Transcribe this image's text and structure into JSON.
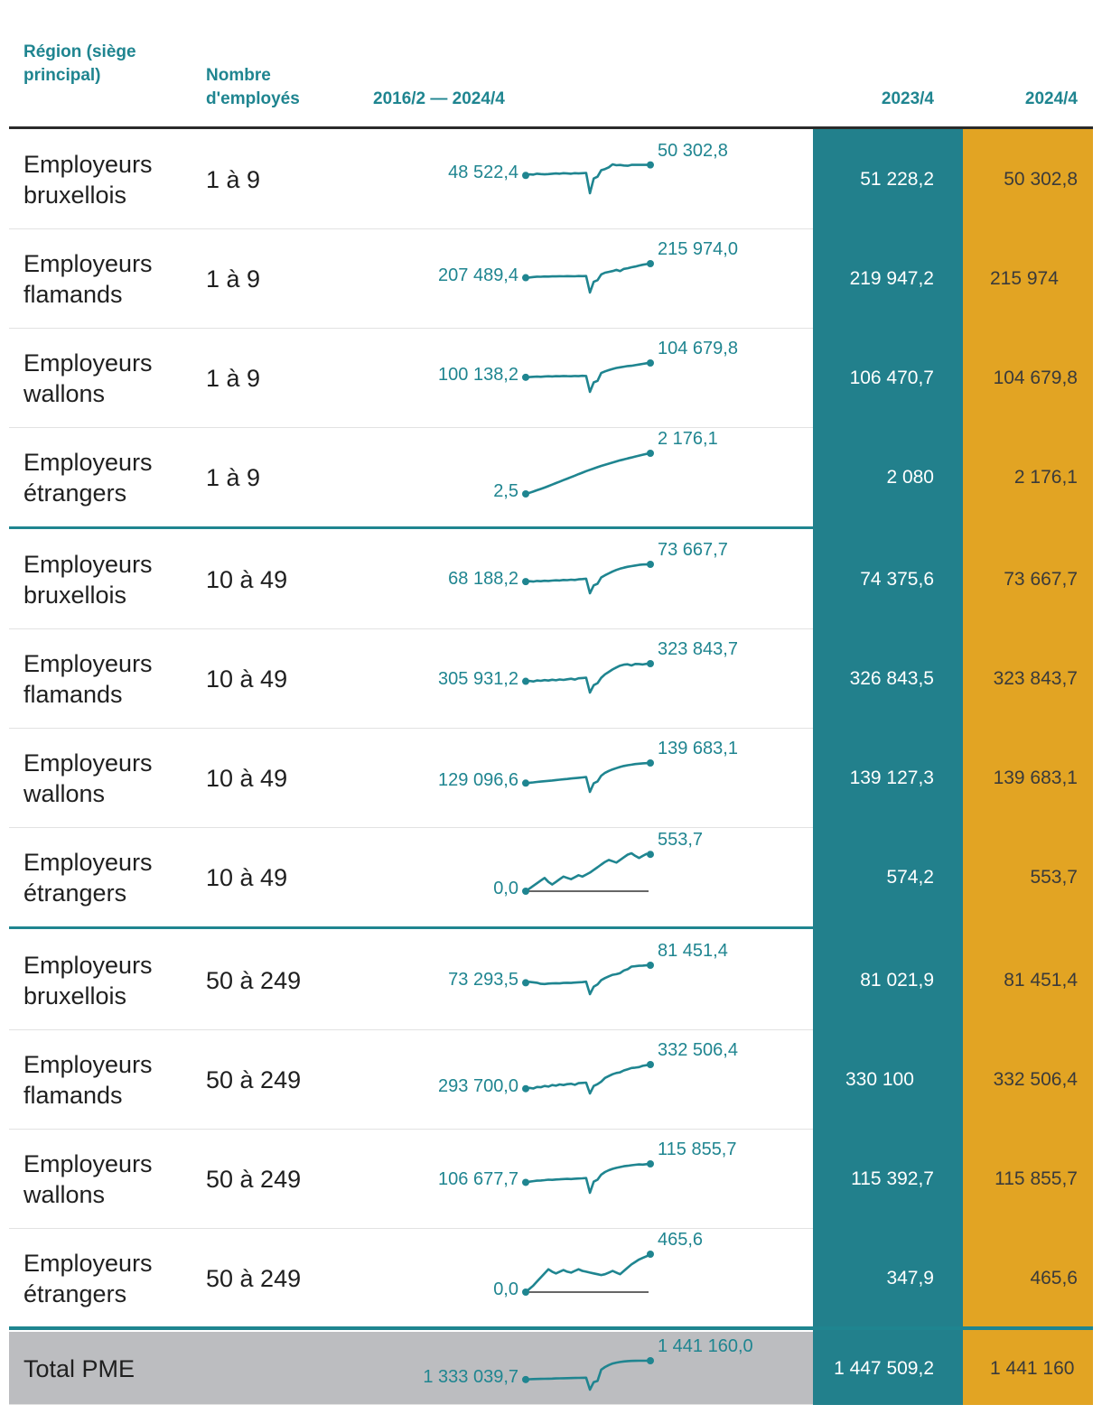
{
  "headers": {
    "region": "Région (siège principal)",
    "employees": "Nombre d'employés",
    "range": "2016/2 — 2024/4",
    "year1": "2023/4",
    "year2": "2024/4"
  },
  "colors": {
    "teal": "#22808c",
    "gold": "#e2a423",
    "accent": "#1f8590",
    "total_bg": "#bcbdc0"
  },
  "rows": [
    {
      "region": "Employeurs bruxellois",
      "employees": "1 à 9",
      "start": "48 522,4",
      "end": "50 302,8",
      "v2023": "51 228,2",
      "v2024": "50 302,8"
    },
    {
      "region": "Employeurs flamands",
      "employees": "1 à 9",
      "start": "207 489,4",
      "end": "215 974,0",
      "v2023": "219 947,2",
      "v2024": "215 974"
    },
    {
      "region": "Employeurs wallons",
      "employees": "1 à 9",
      "start": "100 138,2",
      "end": "104 679,8",
      "v2023": "106 470,7",
      "v2024": "104 679,8"
    },
    {
      "region": "Employeurs étrangers",
      "employees": "1 à 9",
      "start": "2,5",
      "end": "2 176,1",
      "v2023": "2 080",
      "v2024": "2 176,1"
    },
    {
      "region": "Employeurs bruxellois",
      "employees": "10 à 49",
      "start": "68 188,2",
      "end": "73 667,7",
      "v2023": "74 375,6",
      "v2024": "73 667,7"
    },
    {
      "region": "Employeurs flamands",
      "employees": "10 à 49",
      "start": "305 931,2",
      "end": "323 843,7",
      "v2023": "326 843,5",
      "v2024": "323 843,7"
    },
    {
      "region": "Employeurs wallons",
      "employees": "10 à 49",
      "start": "129 096,6",
      "end": "139 683,1",
      "v2023": "139 127,3",
      "v2024": "139 683,1"
    },
    {
      "region": "Employeurs étrangers",
      "employees": "10 à 49",
      "start": "0,0",
      "end": "553,7",
      "v2023": "574,2",
      "v2024": "553,7"
    },
    {
      "region": "Employeurs bruxellois",
      "employees": "50 à 249",
      "start": "73 293,5",
      "end": "81 451,4",
      "v2023": "81 021,9",
      "v2024": "81 451,4"
    },
    {
      "region": "Employeurs flamands",
      "employees": "50 à 249",
      "start": "293 700,0",
      "end": "332 506,4",
      "v2023": "330 100",
      "v2024": "332 506,4"
    },
    {
      "region": "Employeurs wallons",
      "employees": "50 à 249",
      "start": "106 677,7",
      "end": "115 855,7",
      "v2023": "115 392,7",
      "v2024": "115 855,7"
    },
    {
      "region": "Employeurs étrangers",
      "employees": "50 à 249",
      "start": "0,0",
      "end": "465,6",
      "v2023": "347,9",
      "v2024": "465,6"
    },
    {
      "region": "Total PME",
      "employees": "",
      "start": "1 333 039,7",
      "end": "1 441 160,0",
      "v2023": "1 447 509,2",
      "v2024": "1 441 160"
    }
  ],
  "chart_data": {
    "type": "table",
    "title": "",
    "columns": [
      "Région (siège principal)",
      "Nombre d'employés",
      "2016/2 — 2024/4",
      "2023/4",
      "2024/4"
    ],
    "sparkline_period": "2016/2 — 2024/4",
    "series": [
      {
        "name": "Employeurs bruxellois 1 à 9",
        "values": [
          48522.4,
          48700,
          48650,
          48800,
          48750,
          48700,
          48750,
          48800,
          48850,
          48800,
          48900,
          48850,
          48800,
          48900,
          48850,
          48900,
          48950,
          45500,
          48000,
          48300,
          49400,
          49600,
          49900,
          50400,
          50250,
          50300,
          50200,
          50150,
          50302.8,
          50302.8,
          50302.8,
          50302.8,
          50302.8,
          50302.8
        ]
      },
      {
        "name": "Employeurs flamands 1 à 9",
        "values": [
          207489.4,
          207600,
          207900,
          208100,
          208050,
          208200,
          208150,
          208250,
          208300,
          208400,
          208350,
          208450,
          208400,
          208350,
          208500,
          208450,
          208500,
          198500,
          205000,
          206000,
          209500,
          210500,
          211000,
          211500,
          212200,
          211500,
          212800,
          213200,
          213800,
          214200,
          214800,
          215300,
          215700,
          215974.0
        ]
      },
      {
        "name": "Employeurs wallons 1 à 9",
        "values": [
          100138.2,
          100200,
          100300,
          100350,
          100300,
          100400,
          100450,
          100400,
          100500,
          100450,
          100550,
          100500,
          100450,
          100550,
          100500,
          100600,
          100550,
          95500,
          98500,
          99000,
          101500,
          102000,
          102400,
          102800,
          103100,
          103300,
          103500,
          103700,
          103800,
          104000,
          104200,
          104400,
          104600,
          104679.8
        ]
      },
      {
        "name": "Employeurs étrangers 1 à 9",
        "values": [
          2.5,
          60,
          130,
          200,
          270,
          340,
          420,
          500,
          580,
          660,
          740,
          820,
          900,
          980,
          1060,
          1140,
          1220,
          1290,
          1360,
          1430,
          1500,
          1560,
          1620,
          1680,
          1740,
          1800,
          1850,
          1900,
          1950,
          2000,
          2050,
          2100,
          2140,
          2176.1
        ]
      },
      {
        "name": "Employeurs bruxellois 10 à 49",
        "values": [
          68188.2,
          68300,
          68200,
          68400,
          68300,
          68450,
          68400,
          68500,
          68600,
          68550,
          68700,
          68650,
          68800,
          68700,
          68900,
          69000,
          69100,
          64500,
          67000,
          67500,
          69500,
          70200,
          70800,
          71400,
          71900,
          72300,
          72600,
          72900,
          73100,
          73300,
          73500,
          73600,
          73650,
          73667.7
        ]
      },
      {
        "name": "Employeurs flamands 10 à 49",
        "values": [
          305931.2,
          306300,
          305800,
          306800,
          306400,
          307200,
          306700,
          307500,
          307000,
          307800,
          307300,
          308000,
          308500,
          307700,
          309000,
          309300,
          309500,
          294500,
          302000,
          304000,
          309500,
          313000,
          315500,
          318000,
          320000,
          321800,
          322800,
          323200,
          322000,
          323600,
          323500,
          323000,
          323700,
          323843.7
        ]
      },
      {
        "name": "Employeurs wallons 10 à 49",
        "values": [
          129096.6,
          129300,
          129500,
          129700,
          129900,
          130100,
          130300,
          130500,
          130700,
          130900,
          131100,
          131300,
          131500,
          131700,
          131900,
          132100,
          132300,
          124500,
          129000,
          130000,
          133000,
          134500,
          135500,
          136300,
          137000,
          137600,
          138100,
          138500,
          138800,
          139100,
          139300,
          139500,
          139600,
          139683.1
        ]
      },
      {
        "name": "Employeurs étrangers 10 à 49",
        "values": [
          0.0,
          40,
          80,
          120,
          160,
          200,
          140,
          100,
          140,
          180,
          220,
          200,
          180,
          210,
          240,
          220,
          250,
          280,
          320,
          360,
          400,
          440,
          470,
          450,
          430,
          470,
          510,
          550,
          570,
          530,
          500,
          530,
          560,
          553.7
        ]
      },
      {
        "name": "Employeurs bruxellois 50 à 249",
        "values": [
          73293.5,
          73700,
          73500,
          73300,
          72800,
          72700,
          72900,
          73000,
          73100,
          73000,
          73200,
          73300,
          73200,
          73400,
          73500,
          73600,
          73800,
          68000,
          71500,
          72500,
          74500,
          75500,
          76300,
          77000,
          77300,
          77800,
          79000,
          79600,
          80800,
          81000,
          81200,
          81300,
          81400,
          81451.4
        ]
      },
      {
        "name": "Employeurs flamands 50 à 249",
        "values": [
          293700.0,
          295000,
          294000,
          296500,
          296000,
          298000,
          297000,
          299500,
          298500,
          300500,
          299500,
          301000,
          301500,
          300000,
          302500,
          303000,
          303500,
          286000,
          298000,
          301000,
          305000,
          311000,
          314000,
          317000,
          319000,
          320000,
          323000,
          325000,
          327000,
          327500,
          328500,
          330500,
          331500,
          332506.4
        ]
      },
      {
        "name": "Employeurs wallons 50 à 249",
        "values": [
          106677.7,
          107000,
          107300,
          107500,
          107600,
          107800,
          108000,
          107900,
          108100,
          108200,
          108300,
          108400,
          108300,
          108500,
          108600,
          108700,
          108800,
          101500,
          107000,
          108000,
          110500,
          111800,
          112700,
          113400,
          113900,
          114300,
          114700,
          114900,
          115200,
          115400,
          115600,
          115500,
          115700,
          115855.7
        ]
      },
      {
        "name": "Employeurs étrangers 50 à 249",
        "values": [
          0.0,
          40,
          80,
          130,
          180,
          230,
          280,
          250,
          230,
          250,
          270,
          250,
          240,
          260,
          280,
          260,
          250,
          240,
          230,
          220,
          210,
          220,
          240,
          260,
          240,
          220,
          260,
          300,
          340,
          370,
          400,
          420,
          440,
          465.6
        ]
      },
      {
        "name": "Total PME",
        "values": [
          1333039.7,
          1334500,
          1335500,
          1336200,
          1337000,
          1337500,
          1338000,
          1338600,
          1339200,
          1339700,
          1340300,
          1340900,
          1341500,
          1342000,
          1342600,
          1343200,
          1343800,
          1275000,
          1318000,
          1325000,
          1390000,
          1405000,
          1416000,
          1425000,
          1430000,
          1434000,
          1437000,
          1439000,
          1440000,
          1440500,
          1441000,
          1441100,
          1441150,
          1441160.0
        ]
      }
    ],
    "value_2023_4": [
      51228.2,
      219947.2,
      106470.7,
      2080,
      74375.6,
      326843.5,
      139127.3,
      574.2,
      81021.9,
      330100,
      115392.7,
      347.9,
      1447509.2
    ],
    "value_2024_4": [
      50302.8,
      215974,
      104679.8,
      2176.1,
      73667.7,
      323843.7,
      139683.1,
      553.7,
      81451.4,
      332506.4,
      115855.7,
      465.6,
      1441160
    ]
  }
}
